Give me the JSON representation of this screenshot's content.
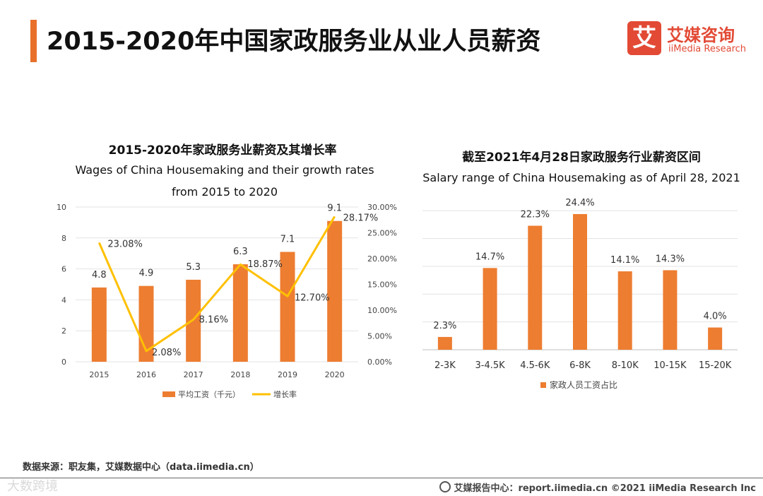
{
  "page": {
    "title": "2015-2020年中国家政服务业从业人员薪资",
    "source": "数据来源：职友集，艾媒数据中心（data.iimedia.cn）",
    "footer": "艾媒报告中心：report.iimedia.cn   ©2021  iiMedia Research  Inc",
    "watermark": "大数跨境",
    "accent_color": "#e8702a"
  },
  "logo": {
    "mark": "艾",
    "cn": "艾媒咨询",
    "en": "iiMedia Research"
  },
  "chart_data": [
    {
      "type": "bar+line",
      "title": "2015-2020年家政服务业薪资及其增长率",
      "subtitle_lines": [
        "Wages of China Housemaking  and their growth rates",
        "from 2015 to 2020"
      ],
      "categories": [
        "2015",
        "2016",
        "2017",
        "2018",
        "2019",
        "2020"
      ],
      "series": [
        {
          "name": "平均工资（千元）",
          "kind": "bar",
          "axis": "left",
          "color": "#ed7d31",
          "values": [
            4.8,
            4.9,
            5.3,
            6.3,
            7.1,
            9.1
          ],
          "labels": [
            "4.8",
            "4.9",
            "5.3",
            "6.3",
            "7.1",
            "9.1"
          ]
        },
        {
          "name": "增长率",
          "kind": "line",
          "axis": "right",
          "color": "#ffc000",
          "values": [
            23.08,
            2.08,
            8.16,
            18.87,
            12.7,
            28.17
          ],
          "labels": [
            "23.08%",
            "2.08%",
            "8.16%",
            "18.87%",
            "12.70%",
            "28.17%"
          ]
        }
      ],
      "y_left": {
        "range": [
          0,
          10
        ],
        "ticks": [
          "0",
          "2",
          "4",
          "6",
          "8",
          "10"
        ]
      },
      "y_right": {
        "range": [
          0,
          30
        ],
        "ticks": [
          "0.00%",
          "5.00%",
          "10.00%",
          "15.00%",
          "20.00%",
          "25.00%",
          "30.00%"
        ]
      },
      "grid": true,
      "legend": "bottom"
    },
    {
      "type": "bar",
      "title": "截至2021年4月28日家政服务行业薪资区间",
      "subtitle_lines": [
        "Salary range of  China Housemaking as of April 28, 2021"
      ],
      "categories": [
        "2-3K",
        "3-4.5K",
        "4.5-6K",
        "6-8K",
        "8-10K",
        "10-15K",
        "15-20K"
      ],
      "series": [
        {
          "name": "家政人员工资占比",
          "color": "#ed7d31",
          "values": [
            2.3,
            14.7,
            22.3,
            24.4,
            14.1,
            14.3,
            4.0
          ],
          "labels": [
            "2.3%",
            "14.7%",
            "22.3%",
            "24.4%",
            "14.1%",
            "14.3%",
            "4.0%"
          ]
        }
      ],
      "y_range": [
        0,
        25
      ],
      "grid": true,
      "legend": "bottom"
    }
  ]
}
